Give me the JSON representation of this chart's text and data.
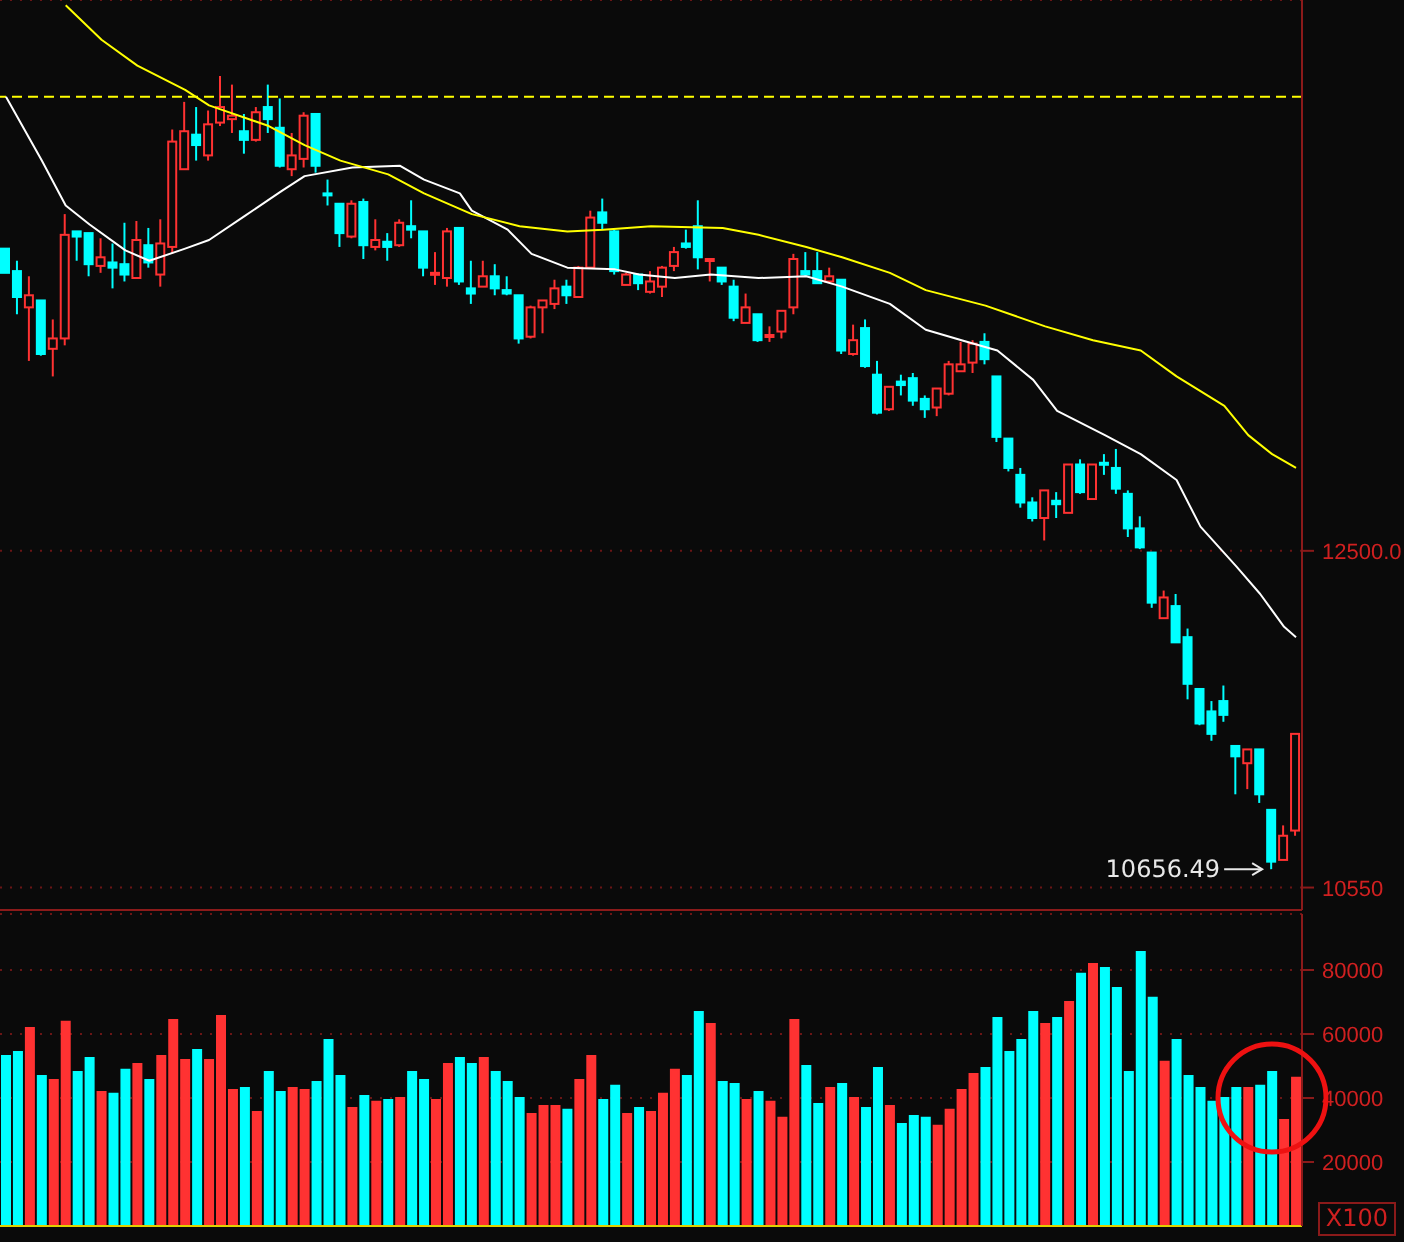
{
  "chart_data": [
    {
      "type": "candlestick",
      "categories": [
        null,
        null,
        null,
        null,
        null,
        null,
        null,
        null,
        null,
        null,
        null,
        null,
        null,
        null,
        null,
        null,
        null,
        null,
        null,
        null,
        null,
        null,
        null,
        null,
        null,
        null,
        null,
        null,
        null,
        null,
        null,
        null,
        null,
        null,
        null,
        null,
        null,
        null,
        null,
        null,
        null,
        null,
        null,
        null,
        null,
        null,
        null,
        null,
        null,
        null,
        null,
        null,
        null,
        null,
        null,
        null,
        null,
        null,
        null,
        null,
        null,
        null,
        null,
        null,
        null,
        null,
        null,
        null,
        null,
        null,
        null,
        null,
        null,
        null,
        null,
        null,
        null,
        null,
        null,
        null,
        null,
        null,
        null,
        null,
        null,
        null,
        null,
        null,
        null,
        null,
        null,
        null,
        null,
        null,
        null,
        null,
        null,
        null,
        null,
        null,
        null,
        null,
        null,
        null,
        null,
        null,
        null,
        null,
        null
      ],
      "ohlc": [
        [
          14250,
          14250,
          14110,
          14110
        ],
        [
          14120,
          14180,
          13870,
          13970
        ],
        [
          13910,
          14090,
          13600,
          13980
        ],
        [
          13950,
          13950,
          13630,
          13640
        ],
        [
          13670,
          13840,
          13510,
          13730
        ],
        [
          13730,
          14450,
          13690,
          14330
        ],
        [
          14350,
          14350,
          14180,
          14320
        ],
        [
          14340,
          14340,
          14090,
          14160
        ],
        [
          14150,
          14310,
          14110,
          14200
        ],
        [
          14170,
          14280,
          14020,
          14140
        ],
        [
          14160,
          14400,
          14060,
          14100
        ],
        [
          14080,
          14410,
          14080,
          14300
        ],
        [
          14270,
          14370,
          14140,
          14170
        ],
        [
          14100,
          14420,
          14030,
          14280
        ],
        [
          14260,
          14940,
          14220,
          14870
        ],
        [
          14710,
          15100,
          14710,
          14930
        ],
        [
          14910,
          15070,
          14760,
          14850
        ],
        [
          14790,
          15050,
          14760,
          14970
        ],
        [
          14980,
          15250,
          14960,
          15070
        ],
        [
          15000,
          15200,
          14920,
          15020
        ],
        [
          14930,
          15030,
          14800,
          14880
        ],
        [
          14880,
          15070,
          14870,
          15040
        ],
        [
          15070,
          15200,
          14920,
          15000
        ],
        [
          14950,
          15120,
          14720,
          14730
        ],
        [
          14710,
          14920,
          14670,
          14790
        ],
        [
          14770,
          15040,
          14720,
          15020
        ],
        [
          15030,
          15030,
          14690,
          14730
        ],
        [
          14570,
          14650,
          14500,
          14560
        ],
        [
          14510,
          14510,
          14260,
          14340
        ],
        [
          14320,
          14530,
          14310,
          14510
        ],
        [
          14520,
          14540,
          14190,
          14270
        ],
        [
          14260,
          14420,
          14240,
          14300
        ],
        [
          14290,
          14340,
          14180,
          14260
        ],
        [
          14270,
          14420,
          14260,
          14400
        ],
        [
          14380,
          14530,
          14310,
          14360
        ],
        [
          14350,
          14350,
          14090,
          14140
        ],
        [
          14100,
          14230,
          14040,
          14110
        ],
        [
          14080,
          14370,
          14030,
          14350
        ],
        [
          14370,
          14370,
          14040,
          14060
        ],
        [
          14020,
          14180,
          13930,
          13990
        ],
        [
          14030,
          14180,
          14030,
          14090
        ],
        [
          14090,
          14160,
          13980,
          14020
        ],
        [
          14010,
          14090,
          13980,
          13990
        ],
        [
          13980,
          13980,
          13700,
          13730
        ],
        [
          13740,
          13920,
          13730,
          13910
        ],
        [
          13910,
          13950,
          13760,
          13950
        ],
        [
          13930,
          14070,
          13900,
          14020
        ],
        [
          14030,
          14070,
          13930,
          13980
        ],
        [
          13970,
          14150,
          13970,
          14140
        ],
        [
          14140,
          14470,
          14140,
          14430
        ],
        [
          14460,
          14540,
          14360,
          14400
        ],
        [
          14350,
          14360,
          14100,
          14120
        ],
        [
          14040,
          14110,
          14040,
          14100
        ],
        [
          14100,
          14100,
          14010,
          14050
        ],
        [
          14000,
          14120,
          13990,
          14060
        ],
        [
          14030,
          14150,
          13970,
          14140
        ],
        [
          14150,
          14260,
          14120,
          14230
        ],
        [
          14280,
          14360,
          14250,
          14260
        ],
        [
          14380,
          14530,
          14130,
          14200
        ],
        [
          14180,
          14190,
          14060,
          14190
        ],
        [
          14140,
          14140,
          14040,
          14060
        ],
        [
          14030,
          14070,
          13830,
          13850
        ],
        [
          13820,
          13990,
          13820,
          13910
        ],
        [
          13870,
          13870,
          13710,
          13720
        ],
        [
          13740,
          13800,
          13710,
          13750
        ],
        [
          13770,
          13890,
          13730,
          13890
        ],
        [
          13910,
          14220,
          13870,
          14190
        ],
        [
          14120,
          14230,
          14090,
          14100
        ],
        [
          14120,
          14230,
          14050,
          14050
        ],
        [
          14060,
          14140,
          14050,
          14090
        ],
        [
          14070,
          14070,
          13640,
          13660
        ],
        [
          13640,
          13810,
          13630,
          13720
        ],
        [
          13790,
          13840,
          13560,
          13570
        ],
        [
          13520,
          13600,
          13290,
          13300
        ],
        [
          13320,
          13450,
          13310,
          13450
        ],
        [
          13480,
          13520,
          13400,
          13460
        ],
        [
          13500,
          13530,
          13340,
          13370
        ],
        [
          13380,
          13400,
          13270,
          13320
        ],
        [
          13330,
          13440,
          13280,
          13440
        ],
        [
          13410,
          13600,
          13400,
          13580
        ],
        [
          13540,
          13710,
          13540,
          13580
        ],
        [
          13590,
          13720,
          13530,
          13700
        ],
        [
          13710,
          13760,
          13580,
          13610
        ],
        [
          13510,
          13510,
          13130,
          13160
        ],
        [
          13150,
          13150,
          12960,
          12980
        ],
        [
          12940,
          12980,
          12750,
          12780
        ],
        [
          12780,
          12810,
          12670,
          12690
        ],
        [
          12690,
          12850,
          12560,
          12850
        ],
        [
          12790,
          12840,
          12690,
          12770
        ],
        [
          12720,
          13000,
          12720,
          13000
        ],
        [
          13000,
          13030,
          12830,
          12840
        ],
        [
          12800,
          13000,
          12800,
          13000
        ],
        [
          13010,
          13060,
          12940,
          13000
        ],
        [
          12980,
          13090,
          12830,
          12860
        ],
        [
          12830,
          12850,
          12580,
          12630
        ],
        [
          12630,
          12700,
          12510,
          12520
        ],
        [
          12490,
          12490,
          12170,
          12200
        ],
        [
          12110,
          12270,
          12110,
          12230
        ],
        [
          12180,
          12250,
          11970,
          11970
        ],
        [
          12000,
          12050,
          11640,
          11730
        ],
        [
          11700,
          11700,
          11490,
          11500
        ],
        [
          11570,
          11630,
          11400,
          11440
        ],
        [
          11630,
          11720,
          11510,
          11550
        ],
        [
          11370,
          11370,
          11090,
          11310
        ],
        [
          11270,
          11350,
          11120,
          11350
        ],
        [
          11350,
          11350,
          11040,
          11090
        ],
        [
          11000,
          11000,
          10656.49,
          10700
        ],
        [
          10710,
          10910,
          10710,
          10850
        ],
        [
          10880,
          11440,
          10850,
          11440
        ]
      ],
      "colors": [
        "#00ffff",
        "#00ffff",
        "#ff3232",
        "#00ffff",
        "#ff3232",
        "#ff3232",
        "#00ffff",
        "#00ffff",
        "#ff3232",
        "#00ffff",
        "#00ffff",
        "#ff3232",
        "#00ffff",
        "#ff3232",
        "#ff3232",
        "#ff3232",
        "#00ffff",
        "#ff3232",
        "#ff3232",
        "#ff3232",
        "#00ffff",
        "#ff3232",
        "#00ffff",
        "#00ffff",
        "#ff3232",
        "#ff3232",
        "#00ffff",
        "#00ffff",
        "#00ffff",
        "#ff3232",
        "#00ffff",
        "#ff3232",
        "#00ffff",
        "#ff3232",
        "#00ffff",
        "#00ffff",
        "#ff3232",
        "#ff3232",
        "#00ffff",
        "#00ffff",
        "#ff3232",
        "#00ffff",
        "#00ffff",
        "#00ffff",
        "#ff3232",
        "#ff3232",
        "#ff3232",
        "#00ffff",
        "#ff3232",
        "#ff3232",
        "#00ffff",
        "#00ffff",
        "#ff3232",
        "#00ffff",
        "#ff3232",
        "#ff3232",
        "#ff3232",
        "#00ffff",
        "#00ffff",
        "#ff3232",
        "#00ffff",
        "#00ffff",
        "#ff3232",
        "#00ffff",
        "#ff3232",
        "#ff3232",
        "#ff3232",
        "#00ffff",
        "#00ffff",
        "#ff3232",
        "#00ffff",
        "#ff3232",
        "#00ffff",
        "#00ffff",
        "#ff3232",
        "#00ffff",
        "#00ffff",
        "#00ffff",
        "#ff3232",
        "#ff3232",
        "#ff3232",
        "#ff3232",
        "#00ffff",
        "#00ffff",
        "#00ffff",
        "#00ffff",
        "#00ffff",
        "#ff3232",
        "#00ffff",
        "#ff3232",
        "#00ffff",
        "#ff3232",
        "#00ffff",
        "#00ffff",
        "#00ffff",
        "#00ffff",
        "#00ffff",
        "#ff3232",
        "#00ffff",
        "#00ffff",
        "#00ffff",
        "#00ffff",
        "#00ffff",
        "#00ffff",
        "#ff3232",
        "#00ffff",
        "#00ffff",
        "#ff3232",
        "#ff3232"
      ],
      "series": [
        {
          "type": "line",
          "color": "#ffffff",
          "values": [
            15130,
            null,
            null,
            14760,
            null,
            14500,
            null,
            14390,
            null,
            null,
            14240,
            null,
            14180,
            null,
            null,
            14250,
            null,
            14300,
            null,
            null,
            14440,
            null,
            null,
            14580,
            null,
            14670,
            null,
            null,
            null,
            14720,
            null,
            null,
            null,
            14730,
            null,
            14650,
            null,
            null,
            14570,
            14470,
            null,
            null,
            14360,
            null,
            14220,
            null,
            null,
            14140,
            null,
            null,
            null,
            14130,
            null,
            14100,
            null,
            null,
            14080,
            null,
            null,
            14100,
            null,
            null,
            null,
            14080,
            null,
            null,
            null,
            14090,
            null,
            null,
            14030,
            null,
            null,
            null,
            13930,
            null,
            null,
            13780,
            null,
            null,
            13720,
            null,
            null,
            13660,
            null,
            null,
            13490,
            null,
            13310,
            null,
            null,
            null,
            13170,
            null,
            null,
            13060,
            null,
            null,
            12910,
            null,
            12640,
            null,
            null,
            12410,
            null,
            12250,
            null,
            12060,
            12000
          ]
        },
        {
          "type": "line",
          "color": "#ffff00",
          "values": [
            null,
            null,
            null,
            null,
            null,
            15660,
            null,
            null,
            15460,
            null,
            null,
            15310,
            null,
            null,
            null,
            15170,
            null,
            15080,
            null,
            null,
            null,
            null,
            14960,
            null,
            null,
            14850,
            null,
            null,
            14760,
            null,
            null,
            null,
            14680,
            null,
            null,
            14570,
            null,
            null,
            null,
            14450,
            null,
            null,
            null,
            14380,
            null,
            null,
            null,
            14350,
            null,
            null,
            14360,
            null,
            null,
            null,
            14380,
            null,
            null,
            null,
            null,
            null,
            14370,
            null,
            null,
            14330,
            null,
            null,
            null,
            14260,
            null,
            null,
            14200,
            null,
            null,
            null,
            14110,
            null,
            null,
            14010,
            null,
            null,
            null,
            null,
            13920,
            null,
            null,
            null,
            null,
            13800,
            null,
            null,
            null,
            13720,
            null,
            null,
            null,
            13660,
            null,
            null,
            13510,
            null,
            null,
            null,
            13340,
            null,
            13170,
            null,
            13060,
            null,
            12980
          ]
        }
      ],
      "ylim": [
        10420,
        15690
      ],
      "yticks": [
        {
          "value": 12500,
          "label": "12500.0"
        },
        10550
      ],
      "ref_lines": [
        {
          "axis": "y",
          "value": 15130,
          "color": "#ffff00",
          "line_style": "dashed"
        }
      ],
      "annotations": [
        "10656.49"
      ],
      "grid": "y",
      "tick_labels": "y"
    },
    {
      "type": "bar",
      "categories": [
        null,
        null,
        null,
        null,
        null,
        null,
        null,
        null,
        null,
        null,
        null,
        null,
        null,
        null,
        null,
        null,
        null,
        null,
        null,
        null,
        null,
        null,
        null,
        null,
        null,
        null,
        null,
        null,
        null,
        null,
        null,
        null,
        null,
        null,
        null,
        null,
        null,
        null,
        null,
        null,
        null,
        null,
        null,
        null,
        null,
        null,
        null,
        null,
        null,
        null,
        null,
        null,
        null,
        null,
        null,
        null,
        null,
        null,
        null,
        null,
        null,
        null,
        null,
        null,
        null,
        null,
        null,
        null,
        null,
        null,
        null,
        null,
        null,
        null,
        null,
        null,
        null,
        null,
        null,
        null,
        null,
        null,
        null,
        null,
        null,
        null,
        null,
        null,
        null,
        null,
        null,
        null,
        null,
        null,
        null,
        null,
        null,
        null,
        null,
        null,
        null,
        null,
        null,
        null,
        null,
        null,
        null,
        null,
        null
      ],
      "values": [
        53100,
        54400,
        61900,
        46900,
        45600,
        63800,
        48100,
        52500,
        41900,
        41300,
        48800,
        50600,
        45600,
        53100,
        64400,
        51900,
        55000,
        51900,
        65600,
        42500,
        43100,
        35600,
        48100,
        41900,
        43100,
        42500,
        45000,
        58100,
        46900,
        36900,
        40600,
        38800,
        39400,
        40000,
        48100,
        45600,
        39400,
        50600,
        52500,
        50600,
        52500,
        48100,
        45000,
        40000,
        35000,
        37500,
        37500,
        36300,
        45600,
        53100,
        39400,
        43800,
        35000,
        36900,
        35600,
        41300,
        48800,
        46900,
        66900,
        63100,
        45000,
        44400,
        39400,
        41900,
        38800,
        33800,
        64400,
        50000,
        38100,
        43100,
        44400,
        40000,
        36900,
        49400,
        37500,
        31900,
        34400,
        33800,
        31300,
        36300,
        42500,
        47500,
        49400,
        65000,
        54400,
        58100,
        66900,
        63100,
        65000,
        70000,
        78800,
        81900,
        80600,
        74400,
        48100,
        85600,
        71300,
        51300,
        58100,
        46900,
        43100,
        38800,
        40000,
        43100,
        43100,
        43800,
        48100,
        33100,
        46300
      ],
      "colors": [
        "#00ffff",
        "#00ffff",
        "#ff3232",
        "#00ffff",
        "#ff3232",
        "#ff3232",
        "#00ffff",
        "#00ffff",
        "#ff3232",
        "#00ffff",
        "#00ffff",
        "#ff3232",
        "#00ffff",
        "#ff3232",
        "#ff3232",
        "#ff3232",
        "#00ffff",
        "#ff3232",
        "#ff3232",
        "#ff3232",
        "#00ffff",
        "#ff3232",
        "#00ffff",
        "#00ffff",
        "#ff3232",
        "#ff3232",
        "#00ffff",
        "#00ffff",
        "#00ffff",
        "#ff3232",
        "#00ffff",
        "#ff3232",
        "#00ffff",
        "#ff3232",
        "#00ffff",
        "#00ffff",
        "#ff3232",
        "#ff3232",
        "#00ffff",
        "#00ffff",
        "#ff3232",
        "#00ffff",
        "#00ffff",
        "#00ffff",
        "#ff3232",
        "#ff3232",
        "#ff3232",
        "#00ffff",
        "#ff3232",
        "#ff3232",
        "#00ffff",
        "#00ffff",
        "#ff3232",
        "#00ffff",
        "#ff3232",
        "#ff3232",
        "#ff3232",
        "#00ffff",
        "#00ffff",
        "#ff3232",
        "#00ffff",
        "#00ffff",
        "#ff3232",
        "#00ffff",
        "#ff3232",
        "#ff3232",
        "#ff3232",
        "#00ffff",
        "#00ffff",
        "#ff3232",
        "#00ffff",
        "#ff3232",
        "#00ffff",
        "#00ffff",
        "#ff3232",
        "#00ffff",
        "#00ffff",
        "#00ffff",
        "#ff3232",
        "#ff3232",
        "#ff3232",
        "#ff3232",
        "#00ffff",
        "#00ffff",
        "#00ffff",
        "#00ffff",
        "#00ffff",
        "#ff3232",
        "#00ffff",
        "#ff3232",
        "#00ffff",
        "#ff3232",
        "#00ffff",
        "#00ffff",
        "#00ffff",
        "#00ffff",
        "#00ffff",
        "#ff3232",
        "#00ffff",
        "#00ffff",
        "#00ffff",
        "#00ffff",
        "#00ffff",
        "#00ffff",
        "#ff3232",
        "#00ffff",
        "#00ffff",
        "#ff3232",
        "#ff3232"
      ],
      "ylim": [
        0,
        97500
      ],
      "yticks": [
        20000,
        40000,
        60000,
        80000
      ],
      "annotations": [
        "X100"
      ],
      "grid": "y",
      "tick_labels": "y"
    }
  ]
}
